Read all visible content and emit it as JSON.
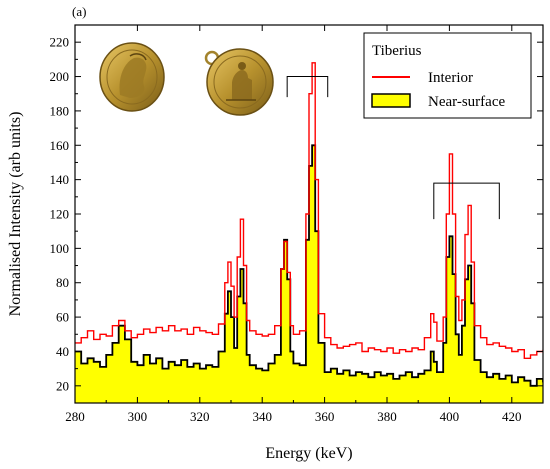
{
  "chart_data": {
    "type": "line",
    "panel_label": "(a)",
    "title": "",
    "xlabel": "Energy (keV)",
    "ylabel": "Normalised Intensity (arb units)",
    "xlim": [
      280,
      430
    ],
    "ylim": [
      10,
      230
    ],
    "xticks": [
      280,
      300,
      320,
      340,
      360,
      380,
      400,
      420
    ],
    "yticks": [
      20,
      40,
      60,
      80,
      100,
      120,
      140,
      160,
      180,
      200,
      220
    ],
    "grid": false,
    "legend": {
      "title": "Tiberius",
      "placement": "top-right",
      "entries": [
        "Interior",
        "Near-surface"
      ]
    },
    "inset": "photo of gold coin, obverse and reverse",
    "series": [
      {
        "name": "Interior",
        "color": "#ff0000",
        "style": "step-line",
        "points": [
          [
            280,
            45
          ],
          [
            282,
            48
          ],
          [
            284,
            52
          ],
          [
            286,
            47
          ],
          [
            288,
            50
          ],
          [
            290,
            49
          ],
          [
            292,
            55
          ],
          [
            294,
            58
          ],
          [
            296,
            52
          ],
          [
            298,
            48
          ],
          [
            300,
            50
          ],
          [
            302,
            53
          ],
          [
            304,
            51
          ],
          [
            306,
            54
          ],
          [
            308,
            52
          ],
          [
            310,
            55
          ],
          [
            312,
            52
          ],
          [
            314,
            53
          ],
          [
            316,
            50
          ],
          [
            318,
            54
          ],
          [
            320,
            52
          ],
          [
            322,
            51
          ],
          [
            324,
            50
          ],
          [
            326,
            56
          ],
          [
            328,
            80
          ],
          [
            329,
            92
          ],
          [
            330,
            78
          ],
          [
            331,
            60
          ],
          [
            332,
            95
          ],
          [
            333,
            117
          ],
          [
            334,
            90
          ],
          [
            335,
            58
          ],
          [
            336,
            52
          ],
          [
            338,
            50
          ],
          [
            340,
            49
          ],
          [
            342,
            50
          ],
          [
            344,
            55
          ],
          [
            346,
            88
          ],
          [
            347,
            104
          ],
          [
            348,
            86
          ],
          [
            349,
            55
          ],
          [
            350,
            50
          ],
          [
            352,
            52
          ],
          [
            354,
            120
          ],
          [
            355,
            190
          ],
          [
            356,
            208
          ],
          [
            357,
            140
          ],
          [
            358,
            62
          ],
          [
            360,
            48
          ],
          [
            362,
            44
          ],
          [
            364,
            42
          ],
          [
            366,
            43
          ],
          [
            368,
            44
          ],
          [
            370,
            45
          ],
          [
            372,
            40
          ],
          [
            374,
            42
          ],
          [
            376,
            41
          ],
          [
            378,
            40
          ],
          [
            380,
            42
          ],
          [
            382,
            39
          ],
          [
            384,
            41
          ],
          [
            386,
            40
          ],
          [
            388,
            42
          ],
          [
            390,
            41
          ],
          [
            392,
            48
          ],
          [
            394,
            62
          ],
          [
            395,
            57
          ],
          [
            396,
            46
          ],
          [
            398,
            60
          ],
          [
            399,
            120
          ],
          [
            400,
            155
          ],
          [
            401,
            120
          ],
          [
            402,
            72
          ],
          [
            403,
            58
          ],
          [
            404,
            70
          ],
          [
            405,
            108
          ],
          [
            406,
            125
          ],
          [
            407,
            92
          ],
          [
            408,
            55
          ],
          [
            410,
            48
          ],
          [
            412,
            44
          ],
          [
            414,
            45
          ],
          [
            416,
            43
          ],
          [
            418,
            42
          ],
          [
            420,
            40
          ],
          [
            422,
            41
          ],
          [
            424,
            36
          ],
          [
            426,
            38
          ],
          [
            428,
            40
          ],
          [
            430,
            41
          ]
        ]
      },
      {
        "name": "Near-surface",
        "color": "#000000",
        "fill": "#ffff00",
        "style": "filled-step",
        "points": [
          [
            280,
            40
          ],
          [
            282,
            33
          ],
          [
            284,
            36
          ],
          [
            286,
            34
          ],
          [
            288,
            31
          ],
          [
            290,
            38
          ],
          [
            292,
            45
          ],
          [
            294,
            55
          ],
          [
            296,
            47
          ],
          [
            298,
            34
          ],
          [
            300,
            32
          ],
          [
            302,
            38
          ],
          [
            304,
            33
          ],
          [
            306,
            36
          ],
          [
            308,
            30
          ],
          [
            310,
            34
          ],
          [
            312,
            32
          ],
          [
            314,
            35
          ],
          [
            316,
            31
          ],
          [
            318,
            33
          ],
          [
            320,
            30
          ],
          [
            322,
            32
          ],
          [
            324,
            31
          ],
          [
            326,
            40
          ],
          [
            328,
            62
          ],
          [
            329,
            75
          ],
          [
            330,
            60
          ],
          [
            331,
            42
          ],
          [
            332,
            72
          ],
          [
            333,
            88
          ],
          [
            334,
            68
          ],
          [
            335,
            38
          ],
          [
            336,
            32
          ],
          [
            338,
            30
          ],
          [
            340,
            29
          ],
          [
            342,
            33
          ],
          [
            344,
            38
          ],
          [
            346,
            88
          ],
          [
            347,
            105
          ],
          [
            348,
            82
          ],
          [
            349,
            40
          ],
          [
            350,
            33
          ],
          [
            352,
            32
          ],
          [
            354,
            105
          ],
          [
            355,
            148
          ],
          [
            356,
            160
          ],
          [
            357,
            110
          ],
          [
            358,
            45
          ],
          [
            360,
            28
          ],
          [
            362,
            30
          ],
          [
            364,
            27
          ],
          [
            366,
            29
          ],
          [
            368,
            26
          ],
          [
            370,
            28
          ],
          [
            372,
            27
          ],
          [
            374,
            25
          ],
          [
            376,
            28
          ],
          [
            378,
            26
          ],
          [
            380,
            27
          ],
          [
            382,
            24
          ],
          [
            384,
            26
          ],
          [
            386,
            28
          ],
          [
            388,
            25
          ],
          [
            390,
            27
          ],
          [
            392,
            29
          ],
          [
            394,
            40
          ],
          [
            395,
            34
          ],
          [
            396,
            28
          ],
          [
            398,
            45
          ],
          [
            399,
            95
          ],
          [
            400,
            107
          ],
          [
            401,
            85
          ],
          [
            402,
            50
          ],
          [
            403,
            38
          ],
          [
            404,
            55
          ],
          [
            405,
            82
          ],
          [
            406,
            90
          ],
          [
            407,
            68
          ],
          [
            408,
            35
          ],
          [
            410,
            28
          ],
          [
            412,
            25
          ],
          [
            414,
            27
          ],
          [
            416,
            24
          ],
          [
            418,
            26
          ],
          [
            420,
            22
          ],
          [
            422,
            25
          ],
          [
            424,
            23
          ],
          [
            426,
            20
          ],
          [
            428,
            24
          ],
          [
            430,
            22
          ]
        ]
      }
    ],
    "brackets": [
      {
        "from": 348,
        "to": 361,
        "top": 200,
        "bottom": 188
      },
      {
        "from": 395,
        "to": 416,
        "top": 138,
        "bottom": 117
      }
    ]
  }
}
